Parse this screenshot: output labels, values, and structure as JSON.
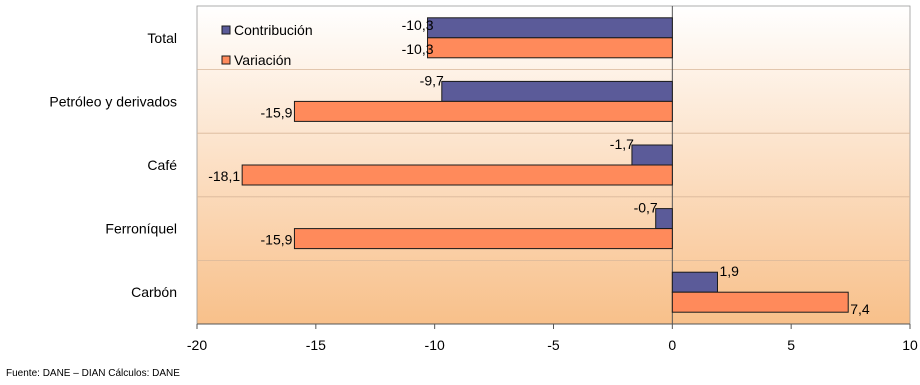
{
  "chart_data": {
    "type": "bar",
    "orientation": "horizontal",
    "categories": [
      "Total",
      "Petróleo y derivados",
      "Café",
      "Ferroníquel",
      "Carbón"
    ],
    "series": [
      {
        "name": "Contribución",
        "values": [
          -10.3,
          -9.7,
          -1.7,
          -0.7,
          1.9
        ],
        "labels": [
          "-10,3",
          "-9,7",
          "-1,7",
          "-0,7",
          "1,9"
        ],
        "color": "#5B5B99"
      },
      {
        "name": "Variación",
        "values": [
          -10.3,
          -15.9,
          -18.1,
          -15.9,
          7.4
        ],
        "labels": [
          "-10,3",
          "-15,9",
          "-18,1",
          "-15,9",
          "7,4"
        ],
        "color": "#FF8A5B"
      }
    ],
    "xlim": [
      -20,
      10
    ],
    "xticks": [
      -20,
      -15,
      -10,
      -5,
      0,
      5,
      10
    ],
    "xtick_labels": [
      "-20",
      "-15",
      "-10",
      "-5",
      "0",
      "5",
      "10"
    ],
    "legend_position": "top-left",
    "grid": true,
    "background": "gradient-peach"
  },
  "source_note": "Fuente: DANE – DIAN  Cálculos: DANE"
}
